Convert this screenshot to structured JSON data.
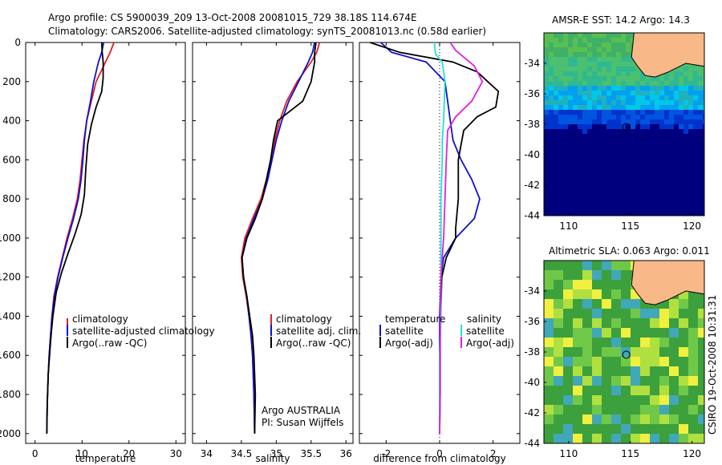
{
  "title": {
    "line1": "Argo profile: CS 5900039_209 13-Oct-2008 20081015_729 38.18S 114.674E",
    "line2": "Climatology: CARS2006. Satellite-adjusted climatology: synTS_20081013.nc (0.58d earlier)"
  },
  "chart_data": [
    {
      "id": "temperature",
      "type": "line",
      "xlabel": "temperature",
      "xlim": [
        -2,
        32
      ],
      "ylim": [
        2050,
        0
      ],
      "xticks": [
        0,
        10,
        20,
        30
      ],
      "yticks": [
        0,
        200,
        400,
        600,
        800,
        1000,
        1200,
        1400,
        1600,
        1800,
        2000
      ],
      "legend": [
        "climatology",
        "satellite-adjusted climatology",
        "Argo(..raw -QC)"
      ],
      "series": [
        {
          "name": "climatology",
          "color": "#e02020",
          "x": [
            16.8,
            16.0,
            15.0,
            13.0,
            12.0,
            11.0,
            10.4,
            10.0,
            9.6,
            9.0,
            8.0,
            6.8,
            5.8,
            4.8,
            4.0,
            3.6,
            3.3,
            3.0,
            2.8,
            2.6,
            2.5
          ],
          "y": [
            0,
            50,
            100,
            200,
            300,
            400,
            500,
            600,
            700,
            800,
            900,
            1000,
            1100,
            1200,
            1300,
            1400,
            1500,
            1600,
            1700,
            1850,
            2000
          ]
        },
        {
          "name": "satellite-adjusted climatology",
          "color": "#1010d0",
          "x": [
            14.6,
            14.2,
            13.5,
            12.5,
            11.8,
            11.0,
            10.5,
            10.2,
            9.8,
            9.2,
            8.2,
            7.0,
            5.9,
            4.9,
            4.1,
            3.6,
            3.3,
            3.0,
            2.8,
            2.6,
            2.5
          ],
          "y": [
            0,
            50,
            100,
            200,
            300,
            400,
            500,
            600,
            700,
            800,
            900,
            1000,
            1100,
            1200,
            1300,
            1400,
            1500,
            1600,
            1700,
            1850,
            2000
          ]
        },
        {
          "name": "Argo(..raw -QC)",
          "color": "#000000",
          "x": [
            14.2,
            14.3,
            14.5,
            14.5,
            14.2,
            13.0,
            12.0,
            11.2,
            10.8,
            10.5,
            9.8,
            8.5,
            7.0,
            5.6,
            4.5,
            3.8,
            3.4,
            3.1,
            2.8,
            2.6,
            2.5
          ],
          "y": [
            0,
            50,
            100,
            180,
            250,
            330,
            420,
            520,
            650,
            780,
            880,
            980,
            1080,
            1180,
            1280,
            1400,
            1500,
            1600,
            1700,
            1850,
            2000
          ]
        }
      ]
    },
    {
      "id": "salinity",
      "type": "line",
      "xlabel": "salinity",
      "xlim": [
        33.8,
        36.1
      ],
      "ylim": [
        2050,
        0
      ],
      "xticks": [
        34,
        34.5,
        35,
        35.5,
        36
      ],
      "xticklabels": [
        "34",
        "34.5",
        "35",
        "35.5",
        "36"
      ],
      "legend": [
        "climatology",
        "satellite adj. clim.",
        "Argo(..raw -QC)"
      ],
      "annotation": [
        "Argo AUSTRALIA",
        "PI: Susan Wijffels"
      ],
      "series": [
        {
          "name": "climatology",
          "color": "#e02020",
          "x": [
            35.62,
            35.58,
            35.5,
            35.3,
            35.15,
            35.05,
            34.98,
            34.92,
            34.86,
            34.78,
            34.66,
            34.55,
            34.5,
            34.52,
            34.57,
            34.61,
            34.64,
            34.66,
            34.68,
            34.69
          ],
          "y": [
            0,
            50,
            100,
            200,
            300,
            400,
            500,
            600,
            700,
            800,
            900,
            1000,
            1100,
            1200,
            1300,
            1400,
            1500,
            1600,
            1800,
            2000
          ]
        },
        {
          "name": "satellite adj. clim.",
          "color": "#1010d0",
          "x": [
            35.55,
            35.52,
            35.46,
            35.32,
            35.18,
            35.08,
            35.0,
            34.94,
            34.88,
            34.8,
            34.68,
            34.57,
            34.51,
            34.53,
            34.58,
            34.61,
            34.64,
            34.66,
            34.68,
            34.69
          ],
          "y": [
            0,
            50,
            100,
            200,
            300,
            400,
            500,
            600,
            700,
            800,
            900,
            1000,
            1100,
            1200,
            1300,
            1400,
            1500,
            1600,
            1800,
            2000
          ]
        },
        {
          "name": "Argo(..raw -QC)",
          "color": "#000000",
          "x": [
            35.57,
            35.55,
            35.55,
            35.5,
            35.38,
            35.02,
            34.96,
            34.92,
            34.86,
            34.8,
            34.7,
            34.58,
            34.51,
            34.53,
            34.58,
            34.62,
            34.66,
            34.68,
            34.7,
            34.69
          ],
          "y": [
            0,
            50,
            100,
            200,
            300,
            400,
            500,
            600,
            700,
            800,
            900,
            1000,
            1100,
            1200,
            1300,
            1400,
            1500,
            1600,
            1800,
            2000
          ]
        }
      ]
    },
    {
      "id": "difference",
      "type": "line",
      "xlabel": "difference from climatology",
      "xlim": [
        -3,
        3
      ],
      "ylim": [
        2050,
        0
      ],
      "xticks": [
        -2,
        0,
        2
      ],
      "legend_temperature": {
        "title": "temperature",
        "items": [
          "satellite",
          "Argo(-adj)"
        ]
      },
      "legend_salinity": {
        "title": "salinity",
        "items": [
          "satellite",
          "Argo(-adj)"
        ]
      },
      "series": [
        {
          "name": "temperature satellite",
          "color": "#1010d0",
          "x": [
            -2.2,
            -1.8,
            -0.5,
            0.2,
            0.4,
            0.5,
            0.8,
            1.2,
            1.5,
            1.3,
            0.6,
            0.15,
            0.05,
            0.0,
            0.0,
            0.0,
            0.0,
            0.0
          ],
          "y": [
            0,
            50,
            100,
            200,
            400,
            500,
            600,
            700,
            800,
            900,
            1000,
            1100,
            1200,
            1400,
            1600,
            1800,
            1900,
            2000
          ]
        },
        {
          "name": "temperature Argo(-adj)",
          "color": "#000000",
          "x": [
            -2.6,
            -1.5,
            0.5,
            1.4,
            2.2,
            2.1,
            1.4,
            0.9,
            0.7,
            0.7,
            0.6,
            0.6,
            0.25,
            0.08,
            0.02,
            0.02,
            0.0
          ],
          "y": [
            0,
            50,
            100,
            150,
            250,
            330,
            380,
            450,
            600,
            800,
            950,
            1000,
            1100,
            1200,
            1500,
            1800,
            2000
          ]
        },
        {
          "name": "salinity satellite",
          "color": "#20e0e0",
          "x": [
            -0.2,
            -0.15,
            0.1,
            0.2,
            0.15,
            0.1,
            0.1,
            0.05,
            0.05,
            0.05,
            0.05,
            0.0,
            0.0,
            0.0
          ],
          "y": [
            0,
            60,
            100,
            200,
            400,
            500,
            600,
            800,
            1000,
            1200,
            1400,
            1600,
            1800,
            2000
          ]
        },
        {
          "name": "salinity Argo(-adj)",
          "color": "#e020e0",
          "x": [
            0.4,
            0.6,
            1.3,
            1.6,
            1.2,
            0.6,
            0.3,
            0.25,
            0.2,
            0.15,
            0.1,
            0.05,
            0.02,
            0.02,
            0.0
          ],
          "y": [
            0,
            40,
            120,
            200,
            300,
            380,
            450,
            600,
            800,
            1000,
            1100,
            1200,
            1400,
            1800,
            2000
          ]
        }
      ]
    }
  ],
  "maps": [
    {
      "id": "amsr-sst",
      "title": "AMSR-E SST: 14.2 Argo: 14.3",
      "xlim": [
        108,
        121
      ],
      "ylim": [
        -44,
        -32
      ],
      "float_lon": 114.674,
      "float_lat": -38.18,
      "xticks": [
        110,
        115,
        120
      ],
      "yticks": [
        -34,
        -36,
        -38,
        -40,
        -42,
        -44
      ]
    },
    {
      "id": "altimetric-sla",
      "title": "Altimetric SLA: 0.063 Argo: 0.011",
      "xlim": [
        108,
        121
      ],
      "ylim": [
        -44,
        -32
      ],
      "float_lon": 114.674,
      "float_lat": -38.18,
      "xticks": [
        110,
        115,
        120
      ],
      "yticks": [
        -34,
        -36,
        -38,
        -40,
        -42,
        -44
      ]
    }
  ],
  "credit": "CSIRO 19-Oct-2008 10:31:31",
  "colors": {
    "land": "#f8b888",
    "deep_blue": "#00007f",
    "sla_green": "#3ca03c"
  }
}
